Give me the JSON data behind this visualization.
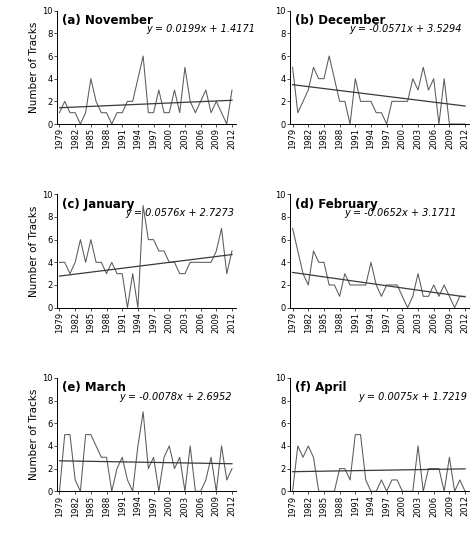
{
  "years": [
    1979,
    1980,
    1981,
    1982,
    1983,
    1984,
    1985,
    1986,
    1987,
    1988,
    1989,
    1990,
    1991,
    1992,
    1993,
    1994,
    1995,
    1996,
    1997,
    1998,
    1999,
    2000,
    2001,
    2002,
    2003,
    2004,
    2005,
    2006,
    2007,
    2008,
    2009,
    2010,
    2011,
    2012
  ],
  "november": [
    1,
    2,
    1,
    1,
    0,
    1,
    4,
    2,
    1,
    1,
    0,
    1,
    1,
    2,
    2,
    4,
    6,
    1,
    1,
    3,
    1,
    1,
    3,
    1,
    5,
    2,
    1,
    2,
    3,
    1,
    2,
    1,
    0,
    3
  ],
  "december": [
    5,
    1,
    2,
    3,
    5,
    4,
    4,
    6,
    4,
    2,
    2,
    0,
    4,
    2,
    2,
    2,
    1,
    1,
    0,
    2,
    2,
    2,
    2,
    4,
    3,
    5,
    3,
    4,
    0,
    4,
    0,
    0,
    0,
    0
  ],
  "january": [
    4,
    4,
    3,
    4,
    6,
    4,
    6,
    4,
    4,
    3,
    4,
    3,
    3,
    0,
    3,
    0,
    9,
    6,
    6,
    5,
    5,
    4,
    4,
    3,
    3,
    4,
    4,
    4,
    4,
    4,
    5,
    7,
    3,
    5
  ],
  "february": [
    7,
    5,
    3,
    2,
    5,
    4,
    4,
    2,
    2,
    1,
    3,
    2,
    2,
    2,
    2,
    4,
    2,
    1,
    2,
    2,
    2,
    1,
    0,
    1,
    3,
    1,
    1,
    2,
    1,
    2,
    1,
    0,
    1,
    1
  ],
  "march": [
    0,
    5,
    5,
    1,
    0,
    5,
    5,
    4,
    3,
    3,
    0,
    2,
    3,
    1,
    0,
    4,
    7,
    2,
    3,
    0,
    3,
    4,
    2,
    3,
    0,
    4,
    0,
    0,
    1,
    3,
    0,
    4,
    1,
    2
  ],
  "april": [
    0,
    4,
    3,
    4,
    3,
    0,
    0,
    0,
    0,
    2,
    2,
    1,
    5,
    5,
    1,
    0,
    0,
    1,
    0,
    1,
    1,
    0,
    0,
    0,
    4,
    0,
    2,
    2,
    2,
    0,
    3,
    0,
    1,
    0
  ],
  "panels": [
    {
      "label": "(a) November",
      "key": "november",
      "slope": 0.0199,
      "intercept": 1.4171,
      "eq": "y = 0.0199x + 1.4171",
      "eq_xa": 0.5,
      "eq_ya": 0.88
    },
    {
      "label": "(b) December",
      "key": "december",
      "slope": -0.0571,
      "intercept": 3.5294,
      "eq": "y = -0.0571x + 3.5294",
      "eq_xa": 0.33,
      "eq_ya": 0.88
    },
    {
      "label": "(c) January",
      "key": "january",
      "slope": 0.0576,
      "intercept": 2.7273,
      "eq": "y = 0.0576x + 2.7273",
      "eq_xa": 0.38,
      "eq_ya": 0.88
    },
    {
      "label": "(d) February",
      "key": "february",
      "slope": -0.0652,
      "intercept": 3.1711,
      "eq": "y = -0.0652x + 3.1711",
      "eq_xa": 0.3,
      "eq_ya": 0.88
    },
    {
      "label": "(e) March",
      "key": "march",
      "slope": -0.0078,
      "intercept": 2.6952,
      "eq": "y = -0.0078x + 2.6952",
      "eq_xa": 0.35,
      "eq_ya": 0.88
    },
    {
      "label": "(f) April",
      "key": "april",
      "slope": 0.0075,
      "intercept": 1.7219,
      "eq": "y = 0.0075x + 1.7219",
      "eq_xa": 0.38,
      "eq_ya": 0.88
    }
  ],
  "xtick_years": [
    1979,
    1982,
    1985,
    1988,
    1991,
    1994,
    1997,
    2000,
    2003,
    2006,
    2009,
    2012
  ],
  "ylim": [
    0,
    10
  ],
  "yticks": [
    0,
    2,
    4,
    6,
    8,
    10
  ],
  "line_color": "#5a5a5a",
  "trend_color": "#3a3a3a",
  "background": "#ffffff",
  "ylabel": "Number of Tracks",
  "title_fontsize": 8.5,
  "eq_fontsize": 7.0,
  "tick_fontsize": 6.0,
  "ylabel_fontsize": 7.5
}
